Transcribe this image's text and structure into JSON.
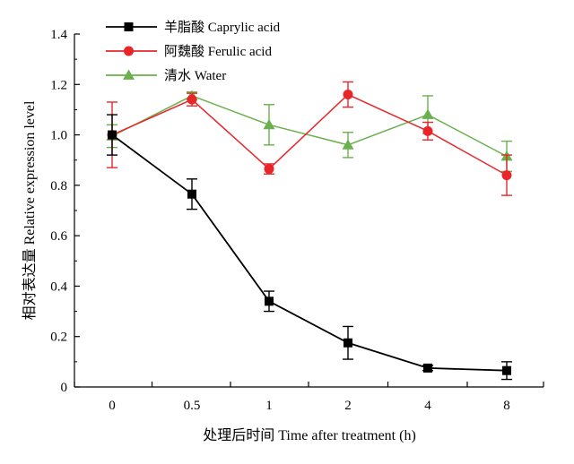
{
  "chart_data": {
    "type": "line",
    "x_categories": [
      "0",
      "0.5",
      "1",
      "2",
      "4",
      "8"
    ],
    "xlabel": "处理后时间 Time after treatment (h)",
    "ylabel": "相对表达量 Relative expression level",
    "ylim": [
      0,
      1.4
    ],
    "yticks": [
      "0",
      "0.2",
      "0.4",
      "0.6",
      "0.8",
      "1.0",
      "1.2",
      "1.4"
    ],
    "legend_position": "top-left",
    "grid": false,
    "series": [
      {
        "name": "羊脂酸 Caprylic acid",
        "color": "#000000",
        "marker": "square",
        "values": [
          1.0,
          0.765,
          0.34,
          0.175,
          0.075,
          0.065
        ],
        "errors": [
          0.08,
          0.06,
          0.04,
          0.065,
          0.01,
          0.035
        ]
      },
      {
        "name": "阿魏酸 Ferulic acid",
        "color": "#e8262a",
        "marker": "circle",
        "values": [
          1.0,
          1.14,
          0.865,
          1.16,
          1.015,
          0.84
        ],
        "errors": [
          0.13,
          0.025,
          0.02,
          0.05,
          0.035,
          0.08
        ]
      },
      {
        "name": "清水 Water",
        "color": "#6ab04c",
        "marker": "triangle",
        "values": [
          0.995,
          1.155,
          1.04,
          0.96,
          1.08,
          0.915
        ],
        "errors": [
          0.045,
          0.015,
          0.08,
          0.05,
          0.075,
          0.06
        ]
      }
    ]
  }
}
